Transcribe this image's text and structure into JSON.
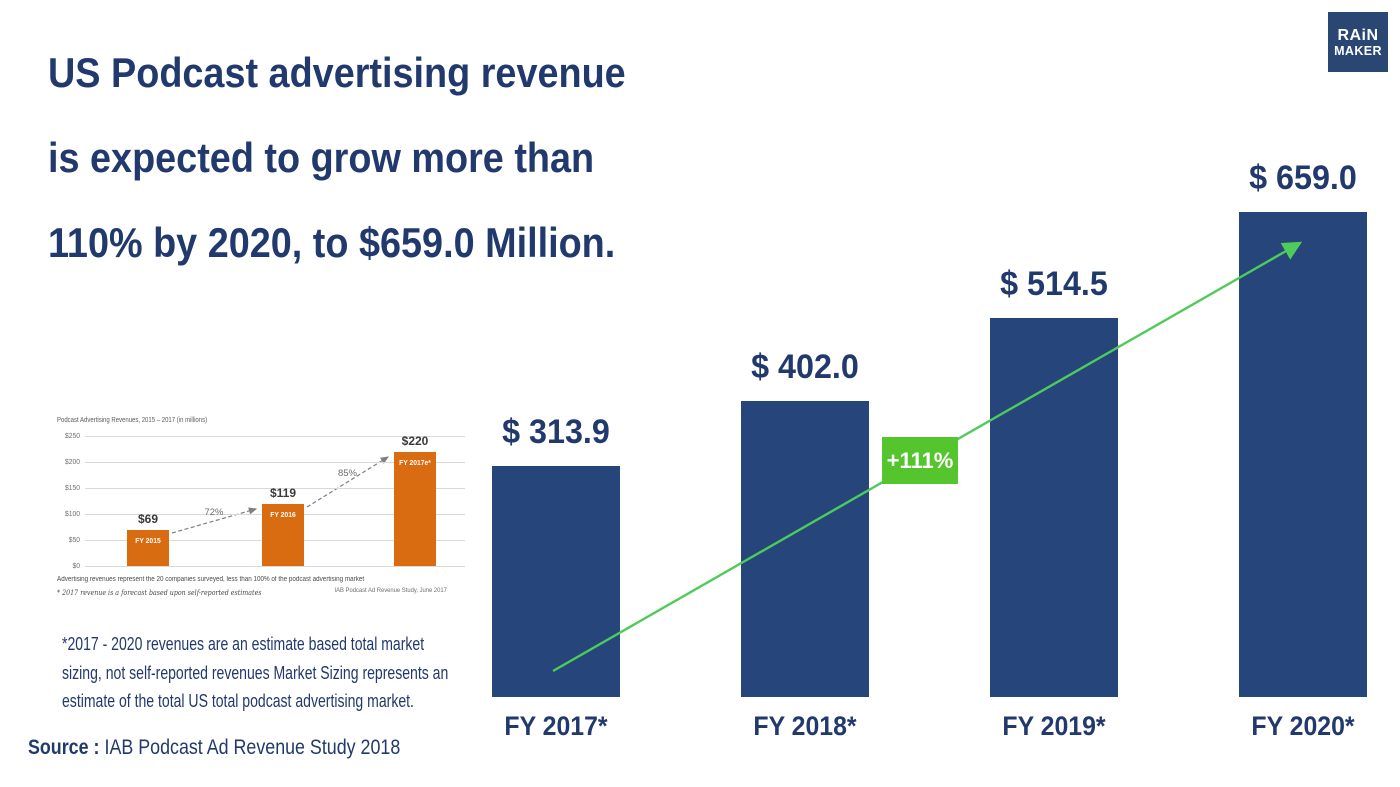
{
  "theme": {
    "navy_text": "#21396c",
    "navy_bar": "#25457b",
    "navy_logo": "#2a4673",
    "green_badge": "#55c52d",
    "green_arrow": "#4ecb5a",
    "mini_orange": "#d96b10",
    "mini_arrow_gray": "#7f7f7f"
  },
  "logo": {
    "line1": "RAiN",
    "line2": "MAKER"
  },
  "headline": {
    "lines": [
      "US Podcast advertising revenue",
      "is expected to grow more than",
      "110% by 2020, to $659.0 Million."
    ]
  },
  "chart_data": [
    {
      "type": "bar",
      "title": "US Podcast advertising revenue forecast (in millions USD)",
      "categories": [
        "FY 2017*",
        "FY 2018*",
        "FY 2019*",
        "FY 2020*"
      ],
      "values": [
        313.9,
        402.0,
        514.5,
        659.0
      ],
      "value_labels": [
        "$ 313.9",
        "$ 402.0",
        "$ 514.5",
        "$ 659.0"
      ],
      "ylim": [
        0,
        659
      ],
      "xlabel": "",
      "ylabel": "",
      "grid": false,
      "legend": null,
      "bar_color": "#25457b",
      "annotation": {
        "text": "+111%",
        "bg": "#55c52d",
        "color": "#ffffff"
      },
      "trend_arrow_color": "#4ecb5a"
    },
    {
      "type": "bar",
      "title": "Podcast Advertising Revenues, 2015 – 2017 (in millions)",
      "categories": [
        "FY 2015",
        "FY 2016",
        "FY 2017e*"
      ],
      "values": [
        69,
        119,
        220
      ],
      "value_labels": [
        "$69",
        "$119",
        "$220"
      ],
      "growth_annotations": [
        "72%",
        "85%"
      ],
      "y_ticks": [
        "$250",
        "$200",
        "$150",
        "$100",
        "$50",
        "$0"
      ],
      "ylim": [
        0,
        250
      ],
      "xlabel": "",
      "ylabel": "",
      "grid": true,
      "legend": null,
      "bar_color": "#d96b10",
      "arrow_color": "#7f7f7f",
      "footnote1": "Advertising revenues represent the 20 companies surveyed, less than 100% of the podcast advertising market",
      "footnote2": "* 2017 revenue is a forecast based upon self-reported estimates",
      "source": "IAB Podcast Ad Revenue Study, June 2017"
    }
  ],
  "footnote": {
    "lines": [
      "*2017 - 2020 revenues are an estimate based total market",
      "sizing, not self-reported revenues Market Sizing represents an",
      "estimate of the total US total podcast advertising market."
    ]
  },
  "source": {
    "label": "Source :",
    "text": "IAB Podcast Ad Revenue Study 2018"
  }
}
